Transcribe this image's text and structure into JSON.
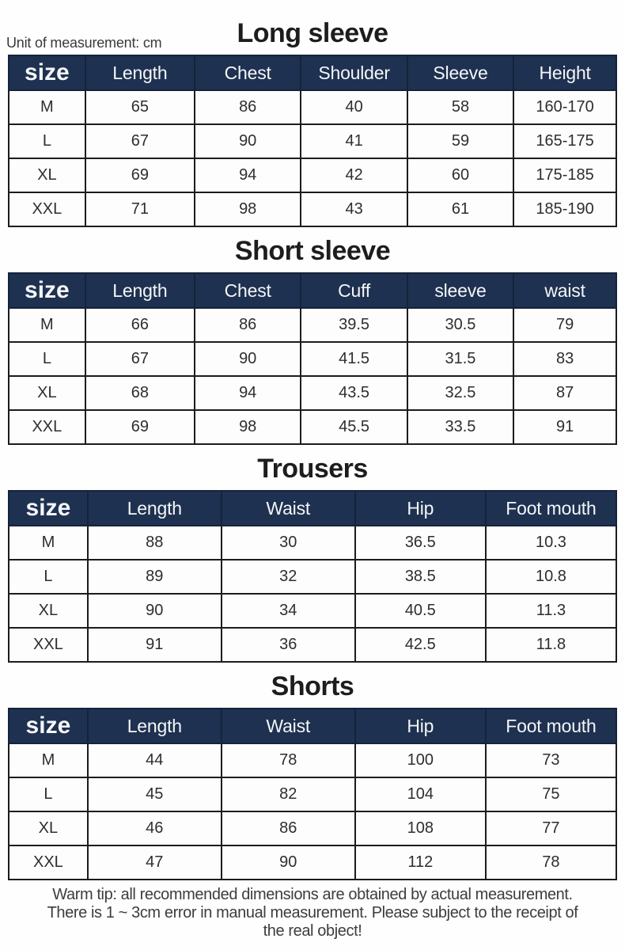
{
  "page": {
    "unit_label": "Unit of measurement: cm",
    "footer_note_lines": [
      "Warm tip: all recommended dimensions are obtained by actual measurement.",
      "There is 1 ~ 3cm error in manual measurement. Please subject to the receipt of",
      "the real object!"
    ]
  },
  "colors": {
    "header_bg": "#1e3150",
    "header_text": "#f4f6f8",
    "cell_border": "#1c1c1c",
    "body_text": "#2e2e2e",
    "background": "#fefefe"
  },
  "sections": [
    {
      "title": "Long sleeve",
      "columns": [
        "size",
        "Length",
        "Chest",
        "Shoulder",
        "Sleeve",
        "Height"
      ],
      "rows": [
        {
          "cells": [
            "M",
            "65",
            "86",
            "40",
            "58",
            "160-170"
          ]
        },
        {
          "cells": [
            "L",
            "67",
            "90",
            "41",
            "59",
            "165-175"
          ]
        },
        {
          "cells": [
            "XL",
            "69",
            "94",
            "42",
            "60",
            "175-185"
          ]
        },
        {
          "cells": [
            "XXL",
            "71",
            "98",
            "43",
            "61",
            "185-190"
          ]
        }
      ]
    },
    {
      "title": "Short sleeve",
      "columns": [
        "size",
        "Length",
        "Chest",
        "Cuff",
        "sleeve",
        "waist"
      ],
      "rows": [
        {
          "cells": [
            "M",
            "66",
            "86",
            "39.5",
            "30.5",
            "79"
          ]
        },
        {
          "cells": [
            "L",
            "67",
            "90",
            "41.5",
            "31.5",
            "83"
          ]
        },
        {
          "cells": [
            "XL",
            "68",
            "94",
            "43.5",
            "32.5",
            "87"
          ]
        },
        {
          "cells": [
            "XXL",
            "69",
            "98",
            "45.5",
            "33.5",
            "91"
          ]
        }
      ]
    },
    {
      "title": "Trousers",
      "columns": [
        "size",
        "Length",
        "Waist",
        "Hip",
        "Foot mouth"
      ],
      "rows": [
        {
          "cells": [
            "M",
            "88",
            "30",
            "36.5",
            "10.3"
          ]
        },
        {
          "cells": [
            "L",
            "89",
            "32",
            "38.5",
            "10.8"
          ]
        },
        {
          "cells": [
            "XL",
            "90",
            "34",
            "40.5",
            "11.3"
          ]
        },
        {
          "cells": [
            "XXL",
            "91",
            "36",
            "42.5",
            "11.8"
          ]
        }
      ]
    },
    {
      "title": "Shorts",
      "columns": [
        "size",
        "Length",
        "Waist",
        "Hip",
        "Foot mouth"
      ],
      "rows": [
        {
          "cells": [
            "M",
            "44",
            "78",
            "100",
            "73"
          ]
        },
        {
          "cells": [
            "L",
            "45",
            "82",
            "104",
            "75"
          ]
        },
        {
          "cells": [
            "XL",
            "46",
            "86",
            "108",
            "77"
          ]
        },
        {
          "cells": [
            "XXL",
            "47",
            "90",
            "112",
            "78"
          ]
        }
      ]
    }
  ]
}
